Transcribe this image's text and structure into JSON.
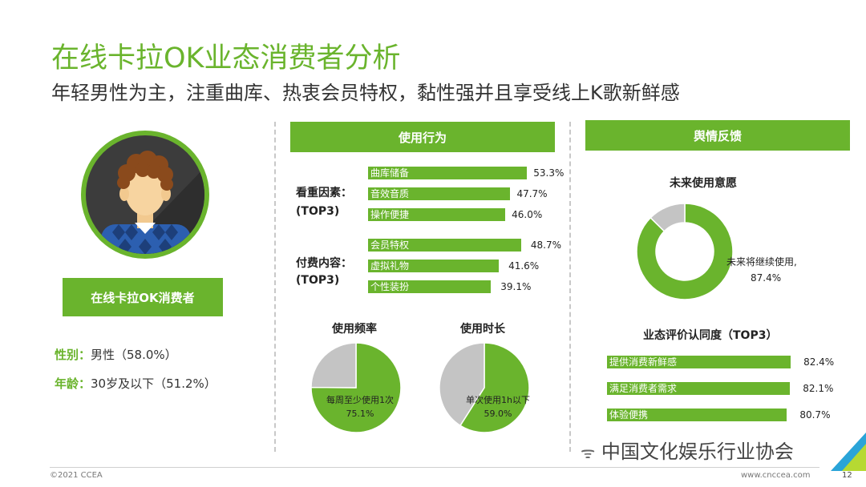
{
  "header": {
    "title": "在线卡拉OK业态消费者分析",
    "subtitle": "年轻男性为主，注重曲库、热衷会员特权，黏性强并且享受线上K歌新鲜感"
  },
  "profile": {
    "badge": "在线卡拉OK消费者",
    "gender_label": "性别：",
    "gender_value": "男性（58.0%）",
    "age_label": "年龄：",
    "age_value": "30岁及以下（51.2%）"
  },
  "usage": {
    "header": "使用行为",
    "factors_label": "看重因素：",
    "factors_sub": "(TOP3)",
    "paid_label": "付费内容：",
    "paid_sub": "(TOP3)",
    "freq_title": "使用频率",
    "dur_title": "使用时长"
  },
  "feedback": {
    "header": "舆情反馈",
    "intent_title": "未来使用意愿",
    "eval_title": "业态评价认同度（TOP3）"
  },
  "colors": {
    "accent": "#6ab42d",
    "grey": "#c4c4c4"
  },
  "chart_data": [
    {
      "type": "bar",
      "name_label": "看重因素",
      "categories": [
        "曲库储备",
        "音效音质",
        "操作便捷"
      ],
      "values": [
        53.3,
        47.7,
        46.0
      ],
      "value_labels": [
        "53.3%",
        "47.7%",
        "46.0%"
      ]
    },
    {
      "type": "bar",
      "name_label": "付费内容",
      "categories": [
        "会员特权",
        "虚拟礼物",
        "个性装扮"
      ],
      "values": [
        48.7,
        41.6,
        39.1
      ],
      "value_labels": [
        "48.7%",
        "41.6%",
        "39.1%"
      ]
    },
    {
      "type": "pie",
      "title": "使用频率",
      "slices": [
        {
          "label": "每周至少使用1次",
          "value": 75.1,
          "value_label": "75.1%"
        },
        {
          "label": "",
          "value": 24.9
        }
      ]
    },
    {
      "type": "pie",
      "title": "使用时长",
      "slices": [
        {
          "label": "单次使用1h以下",
          "value": 59.0,
          "value_label": "59.0%"
        },
        {
          "label": "",
          "value": 41.0
        }
      ]
    },
    {
      "type": "pie",
      "title": "未来使用意愿",
      "donut": true,
      "slices": [
        {
          "label": "未来将继续使用,",
          "value": 87.4,
          "value_label": "87.4%"
        },
        {
          "label": "",
          "value": 12.6
        }
      ]
    },
    {
      "type": "bar",
      "title": "业态评价认同度（TOP3）",
      "categories": [
        "提供消费新鲜感",
        "满足消费者需求",
        "体验便携"
      ],
      "values": [
        82.4,
        82.1,
        80.7
      ],
      "value_labels": [
        "82.4%",
        "82.1%",
        "80.7%"
      ]
    }
  ],
  "watermark": "中国文化娱乐行业协会",
  "footer": {
    "copyright": "©2021 CCEA",
    "url": "www.cncceа.com",
    "page": "12"
  }
}
